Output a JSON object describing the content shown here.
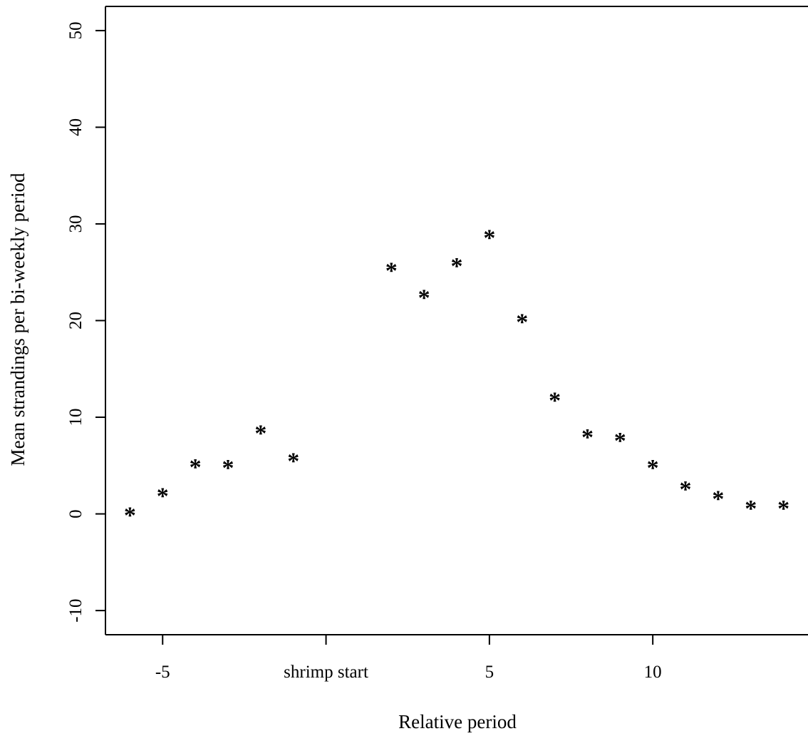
{
  "chart_data": {
    "type": "scatter",
    "title": "",
    "xlabel": "Relative period",
    "ylabel": "Mean strandings per bi-weekly period",
    "x_ticks": [
      {
        "value": -5,
        "label": "-5"
      },
      {
        "value": 0,
        "label": "shrimp start"
      },
      {
        "value": 5,
        "label": "5"
      },
      {
        "value": 10,
        "label": "10"
      }
    ],
    "y_ticks": [
      {
        "value": -10,
        "label": "-10"
      },
      {
        "value": 0,
        "label": "0"
      },
      {
        "value": 10,
        "label": "10"
      },
      {
        "value": 20,
        "label": "20"
      },
      {
        "value": 30,
        "label": "30"
      },
      {
        "value": 40,
        "label": "40"
      },
      {
        "value": 50,
        "label": "50"
      }
    ],
    "xlim": [
      -6.75,
      14.75
    ],
    "ylim": [
      -12.5,
      52.5
    ],
    "grid": false,
    "marker": "*",
    "color": "#000000",
    "series": [
      {
        "points": [
          {
            "x": -6,
            "y": 0
          },
          {
            "x": -5,
            "y": 2
          },
          {
            "x": -4,
            "y": 5
          },
          {
            "x": -3,
            "y": 4.9
          },
          {
            "x": -2,
            "y": 8.5
          },
          {
            "x": -1,
            "y": 5.6
          },
          {
            "x": 2,
            "y": 25.3
          },
          {
            "x": 3,
            "y": 22.5
          },
          {
            "x": 4,
            "y": 25.8
          },
          {
            "x": 5,
            "y": 28.7
          },
          {
            "x": 6,
            "y": 20
          },
          {
            "x": 7,
            "y": 11.9
          },
          {
            "x": 8,
            "y": 8.1
          },
          {
            "x": 9,
            "y": 7.7
          },
          {
            "x": 10,
            "y": 4.9
          },
          {
            "x": 11,
            "y": 2.7
          },
          {
            "x": 12,
            "y": 1.7
          },
          {
            "x": 13,
            "y": 0.7
          },
          {
            "x": 14,
            "y": 0.7
          }
        ]
      }
    ]
  }
}
